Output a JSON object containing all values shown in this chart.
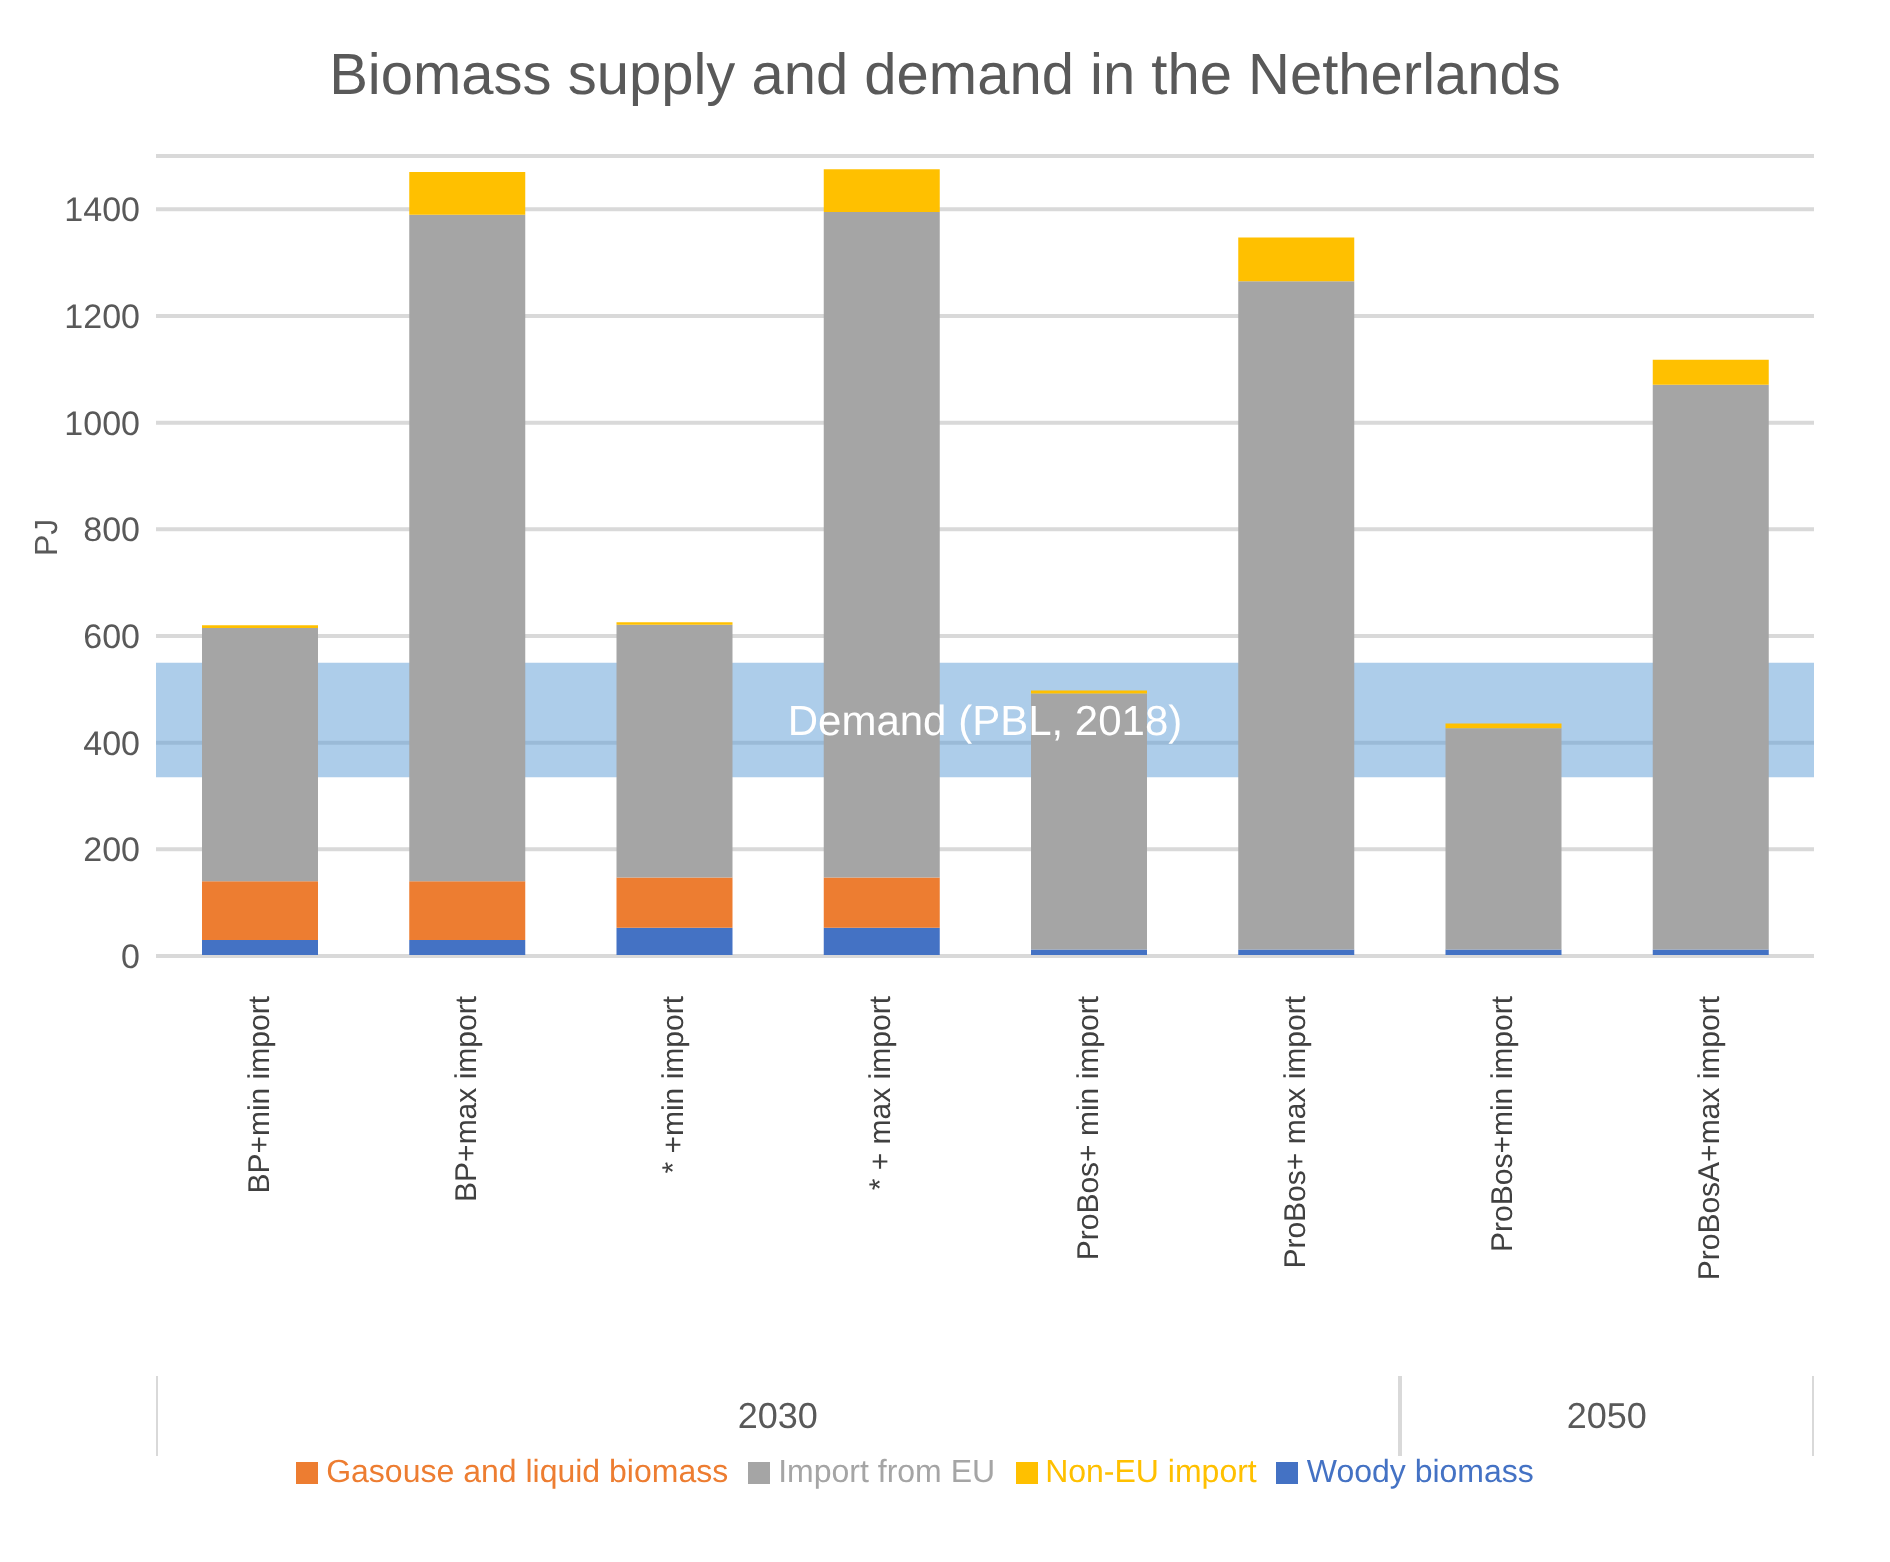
{
  "chart_data": {
    "type": "bar",
    "title": "Biomass supply and demand in the Netherlands",
    "ylabel": "PJ",
    "stacked": true,
    "categories": [
      "BP+min import",
      "BP+max import",
      "* +min import",
      "* + max import",
      "ProBos+ min import",
      "ProBos+ max import",
      "ProBos+min import",
      "ProBosA+max import"
    ],
    "series": [
      {
        "name": "Woody biomass",
        "color": "#4472c4",
        "values": [
          30,
          30,
          53,
          53,
          12,
          12,
          12,
          12
        ]
      },
      {
        "name": "Gasouse and liquid biomass",
        "color": "#ed7d31",
        "values": [
          110,
          110,
          94,
          94,
          0,
          0,
          0,
          0
        ]
      },
      {
        "name": "Import from EU",
        "color": "#a5a5a5",
        "values": [
          475,
          1250,
          474,
          1248,
          480,
          1253,
          415,
          1059
        ]
      },
      {
        "name": "Non-EU import",
        "color": "#ffc000",
        "values": [
          5,
          80,
          5,
          80,
          6,
          82,
          9,
          47
        ]
      }
    ],
    "ylim": [
      0,
      1500
    ],
    "yticks": [
      0,
      200,
      400,
      600,
      800,
      1000,
      1200,
      1400
    ],
    "grid": "y",
    "legend": "bottom",
    "bands": [
      {
        "axis": "y",
        "from": 335,
        "to": 550,
        "label": "Demand (PBL, 2018)",
        "color": "#5b9bd5"
      }
    ],
    "annotations": [
      "2030",
      "2050"
    ]
  }
}
